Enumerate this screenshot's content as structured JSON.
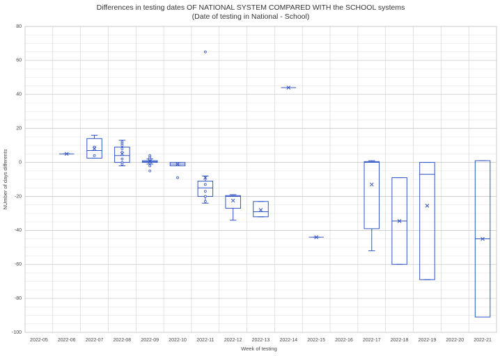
{
  "chart_data": {
    "type": "box",
    "title": "Differences in testing dates OF NATIONAL SYSTEM COMPARED WITH the SCHOOL systems",
    "subtitle": "(Date of testing in National - School)",
    "x_label": "Week of testing",
    "y_label": "NUmber of days differents",
    "color": "#2f52c4",
    "grid": true,
    "categories": [
      "2022-05",
      "2022-06",
      "2022-07",
      "2022-08",
      "2022-09",
      "2022-10",
      "2022-11",
      "2022-12",
      "2022-13",
      "2022-14",
      "2022-15",
      "2022-16",
      "2022-17",
      "2022-18",
      "2022-19",
      "2022-20",
      "2022-21"
    ],
    "boxes": [
      null,
      {
        "min": 5,
        "q1": 5,
        "median": 5,
        "q3": 5,
        "max": 5,
        "mean": 5,
        "points": []
      },
      {
        "min": 2.5,
        "q1": 2.5,
        "median": 7,
        "q3": 14,
        "max": 16,
        "mean": 8,
        "points": [
          9,
          4
        ]
      },
      {
        "min": -2,
        "q1": 0,
        "median": 4,
        "q3": 9,
        "max": 13,
        "mean": 5,
        "points": [
          12,
          11,
          10,
          8,
          6,
          2,
          0,
          -1
        ]
      },
      {
        "min": -1,
        "q1": 0,
        "median": 0.5,
        "q3": 1,
        "max": 2,
        "mean": 0.5,
        "points": [
          4,
          3,
          2,
          -2,
          -5
        ]
      },
      {
        "min": -2,
        "q1": -2,
        "median": -1,
        "q3": 0,
        "max": 0,
        "mean": -1,
        "points": [
          -9
        ]
      },
      {
        "min": -24,
        "q1": -20,
        "median": -15,
        "q3": -11,
        "max": -8,
        "mean": -9,
        "points": [
          65,
          -13,
          -17,
          -20,
          -23
        ]
      },
      {
        "min": -34,
        "q1": -27,
        "median": -20,
        "q3": -19.5,
        "max": -19,
        "mean": -22.5,
        "points": []
      },
      {
        "min": -32,
        "q1": -32,
        "median": -29,
        "q3": -23,
        "max": -23,
        "mean": -28,
        "points": []
      },
      {
        "min": 44,
        "q1": 44,
        "median": 44,
        "q3": 44,
        "max": 44,
        "mean": 44,
        "points": []
      },
      {
        "min": -44,
        "q1": -44,
        "median": -44,
        "q3": -44,
        "max": -44,
        "mean": -44,
        "points": []
      },
      null,
      {
        "min": -52,
        "q1": -39,
        "median": 0,
        "q3": 0.5,
        "max": 1,
        "mean": -13,
        "points": []
      },
      {
        "min": -60,
        "q1": -60,
        "median": -34.5,
        "q3": -9,
        "max": -9,
        "mean": -34.5,
        "points": []
      },
      {
        "min": -69,
        "q1": -69,
        "median": -7,
        "q3": 0,
        "max": 0,
        "mean": -25.5,
        "points": []
      },
      null,
      {
        "min": -91,
        "q1": -91,
        "median": -45,
        "q3": 1,
        "max": 1,
        "mean": -45,
        "points": []
      }
    ],
    "ylim": [
      -100,
      80
    ],
    "yticks": [
      -100,
      -80,
      -60,
      -40,
      -20,
      0,
      20,
      40,
      60,
      80
    ],
    "minor_yticks": [
      -95,
      -90,
      -85,
      -75,
      -70,
      -65,
      -55,
      -50,
      -45,
      -35,
      -30,
      -25,
      -15,
      -10,
      -5,
      5,
      10,
      15,
      25,
      30,
      35,
      45,
      50,
      55,
      65,
      70,
      75
    ]
  }
}
